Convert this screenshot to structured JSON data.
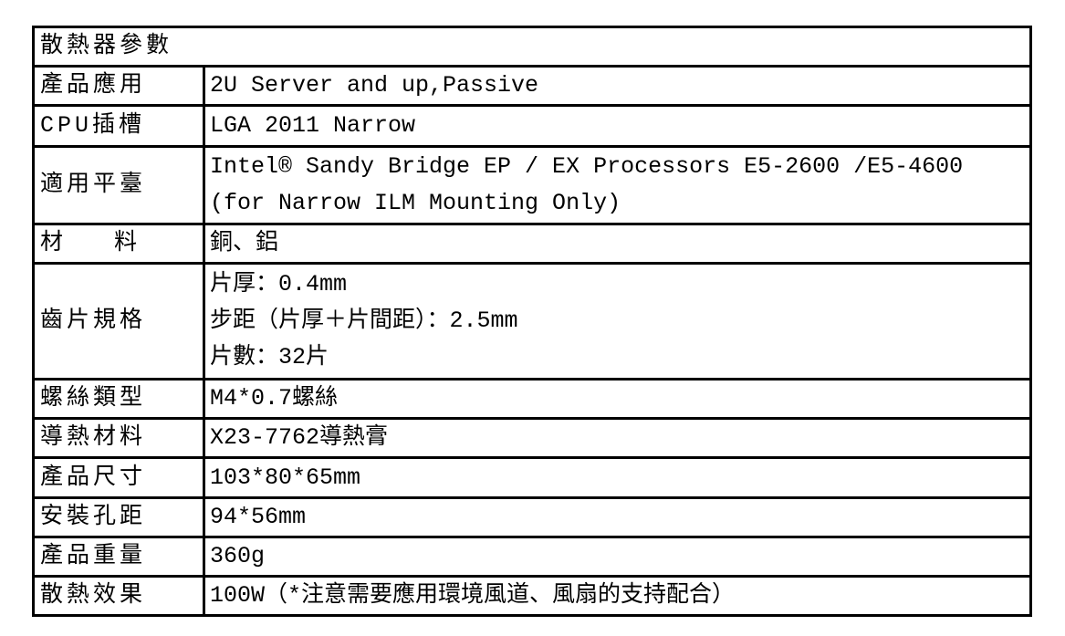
{
  "title": "散熱器參數",
  "rows": [
    {
      "label": "產品應用",
      "lines": [
        "2U Server and up,Passive"
      ]
    },
    {
      "label": "CPU插槽",
      "lines": [
        "LGA 2011 Narrow"
      ]
    },
    {
      "label": "適用平臺",
      "lines": [
        "Intel® Sandy Bridge EP / EX Processors E5-2600 /E5-4600",
        "(for Narrow ILM Mounting Only)"
      ]
    },
    {
      "label_parts": [
        "材",
        "料"
      ],
      "lines": [
        "銅、鋁"
      ]
    },
    {
      "label": "齒片規格",
      "lines": [
        "片厚：0.4mm",
        "步距（片厚＋片間距）：2.5mm",
        "片數：32片"
      ]
    },
    {
      "label": "螺絲類型",
      "lines": [
        "M4*0.7螺絲"
      ]
    },
    {
      "label": "導熱材料",
      "lines": [
        "X23-7762導熱膏"
      ]
    },
    {
      "label": "產品尺寸",
      "lines": [
        "103*80*65mm"
      ]
    },
    {
      "label": "安裝孔距",
      "lines": [
        "94*56mm"
      ]
    },
    {
      "label": "產品重量",
      "lines": [
        "360g"
      ]
    },
    {
      "label": "散熱效果",
      "lines": [
        "100W（*注意需要應用環境風道、風扇的支持配合）"
      ]
    }
  ]
}
